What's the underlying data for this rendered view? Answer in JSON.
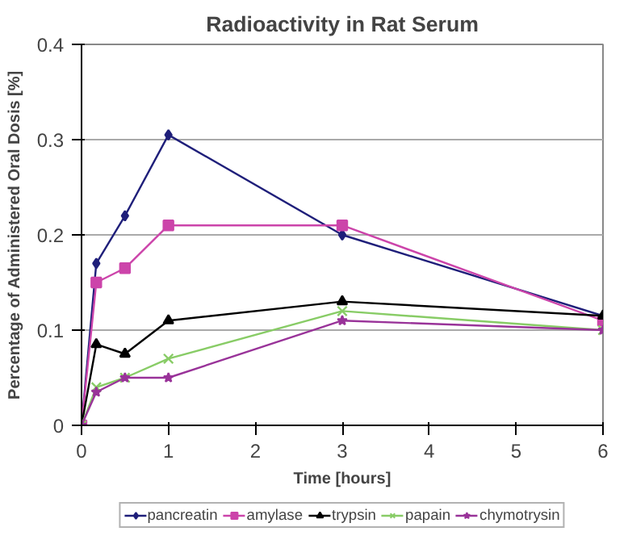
{
  "chart_data": {
    "type": "line",
    "title": "Radioactivity in Rat Serum",
    "xlabel": "Time [hours]",
    "ylabel": "Percentage of Administered Oral Dosis [%]",
    "x": [
      0,
      0.17,
      0.5,
      1,
      3,
      6
    ],
    "series": [
      {
        "name": "pancreatin",
        "color": "#1f1f7a",
        "marker": "diamond",
        "values": [
          0,
          0.17,
          0.22,
          0.305,
          0.2,
          0.115
        ]
      },
      {
        "name": "amylase",
        "color": "#cc44aa",
        "marker": "square",
        "values": [
          0,
          0.15,
          0.165,
          0.21,
          0.21,
          0.11
        ]
      },
      {
        "name": "trypsin",
        "color": "#000000",
        "marker": "triangle",
        "values": [
          0,
          0.085,
          0.075,
          0.11,
          0.13,
          0.115
        ]
      },
      {
        "name": "papain",
        "color": "#88cc66",
        "marker": "cross",
        "values": [
          0,
          0.04,
          0.05,
          0.07,
          0.12,
          0.1
        ]
      },
      {
        "name": "chymotrysin",
        "color": "#993399",
        "marker": "star",
        "values": [
          0,
          0.035,
          0.05,
          0.05,
          0.11,
          0.1
        ]
      }
    ],
    "xlim": [
      0,
      6
    ],
    "xticks": [
      0,
      1,
      2,
      3,
      4,
      5,
      6
    ],
    "ylim": [
      0,
      0.4
    ],
    "yticks": [
      0,
      0.1,
      0.2,
      0.3,
      0.4
    ],
    "grid": "y",
    "legend": "bottom",
    "line_style": "solid"
  }
}
